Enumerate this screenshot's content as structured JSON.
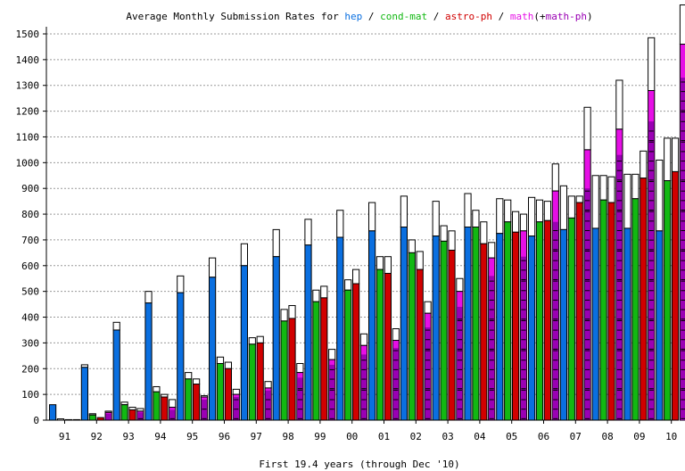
{
  "chart_data": {
    "type": "bar",
    "title_parts": {
      "prefix": "Average Monthly Submission Rates for ",
      "hep": "hep",
      "sep1": " / ",
      "condmat": "cond-mat",
      "sep2": " / ",
      "astro": "astro-ph",
      "sep3": " / ",
      "math": "math",
      "math_extra_open": "(+",
      "math_extra": "math-ph",
      "math_extra_close": ")"
    },
    "xlabel": "First 19.4 years (through Dec '10)",
    "ylabel": "",
    "ylim": [
      0,
      1500
    ],
    "y_ticks": [
      0,
      100,
      200,
      300,
      400,
      500,
      600,
      700,
      800,
      900,
      1000,
      1100,
      1200,
      1300,
      1400,
      1500
    ],
    "grid": true,
    "categories": [
      "91",
      "92",
      "93",
      "94",
      "95",
      "96",
      "97",
      "98",
      "99",
      "00",
      "01",
      "02",
      "03",
      "04",
      "05",
      "06",
      "07",
      "08",
      "09",
      "10"
    ],
    "colors": {
      "hep": "#0a6fe0",
      "condmat": "#12b812",
      "astro": "#d10000",
      "math": "#e60fe6",
      "mathph": "#9a00b4",
      "total": "#ffffff",
      "grid": "#999999"
    },
    "series": [
      {
        "name": "hep",
        "values": [
          60,
          205,
          350,
          455,
          495,
          555,
          600,
          635,
          680,
          710,
          735,
          750,
          715,
          750,
          725,
          715,
          740,
          745,
          745,
          735
        ],
        "totals": [
          60,
          215,
          380,
          500,
          560,
          630,
          685,
          740,
          780,
          815,
          845,
          870,
          850,
          880,
          860,
          865,
          910,
          950,
          955,
          1010
        ]
      },
      {
        "name": "cond-mat",
        "values": [
          0,
          20,
          60,
          110,
          160,
          220,
          295,
          385,
          460,
          505,
          585,
          650,
          695,
          750,
          770,
          770,
          785,
          855,
          860,
          930
        ],
        "totals": [
          5,
          25,
          70,
          130,
          185,
          245,
          320,
          430,
          505,
          545,
          635,
          700,
          755,
          815,
          855,
          855,
          870,
          950,
          955,
          1095
        ]
      },
      {
        "name": "astro-ph",
        "values": [
          2,
          10,
          40,
          90,
          140,
          200,
          300,
          395,
          475,
          530,
          570,
          585,
          660,
          685,
          730,
          775,
          845,
          845,
          940,
          965
        ],
        "totals": [
          2,
          10,
          50,
          100,
          160,
          225,
          325,
          445,
          520,
          585,
          635,
          655,
          735,
          770,
          810,
          850,
          870,
          945,
          1045,
          1095
        ]
      },
      {
        "name": "math",
        "values": [
          0,
          30,
          35,
          50,
          90,
          100,
          125,
          185,
          235,
          290,
          310,
          415,
          500,
          630,
          735,
          890,
          1050,
          1130,
          1280,
          1460
        ],
        "totals": [
          2,
          35,
          45,
          80,
          95,
          120,
          150,
          220,
          275,
          335,
          355,
          460,
          550,
          690,
          800,
          995,
          1215,
          1320,
          1485,
          1620
        ]
      },
      {
        "name": "math-ph",
        "values": [
          0,
          25,
          30,
          40,
          80,
          90,
          115,
          165,
          215,
          255,
          280,
          360,
          440,
          560,
          635,
          770,
          900,
          1030,
          1160,
          1330
        ]
      }
    ]
  }
}
